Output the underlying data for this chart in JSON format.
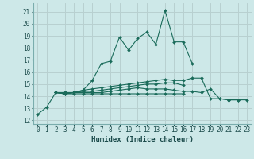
{
  "title": "",
  "xlabel": "Humidex (Indice chaleur)",
  "background_color": "#cde8e8",
  "grid_color": "#b8d0d0",
  "line_color": "#1a6b5a",
  "xlim": [
    -0.5,
    23.5
  ],
  "ylim": [
    11.7,
    21.7
  ],
  "yticks": [
    12,
    13,
    14,
    15,
    16,
    17,
    18,
    19,
    20,
    21
  ],
  "xticks": [
    0,
    1,
    2,
    3,
    4,
    5,
    6,
    7,
    8,
    9,
    10,
    11,
    12,
    13,
    14,
    15,
    16,
    17,
    18,
    19,
    20,
    21,
    22,
    23
  ],
  "series": [
    [
      12.5,
      13.1,
      14.3,
      14.3,
      14.3,
      14.5,
      15.3,
      16.7,
      16.9,
      18.9,
      17.8,
      18.8,
      19.3,
      18.3,
      21.1,
      18.5,
      18.5,
      16.7,
      null,
      null,
      null,
      null,
      null,
      null
    ],
    [
      null,
      null,
      14.3,
      14.3,
      14.3,
      14.5,
      14.6,
      14.7,
      14.8,
      14.9,
      15.0,
      15.1,
      15.2,
      15.3,
      15.4,
      15.3,
      15.3,
      15.5,
      15.5,
      13.8,
      13.8,
      13.7,
      13.7,
      null
    ],
    [
      null,
      null,
      14.3,
      14.2,
      14.3,
      14.4,
      14.4,
      14.5,
      14.6,
      14.7,
      14.8,
      14.9,
      15.0,
      15.0,
      15.1,
      15.1,
      14.9,
      null,
      null,
      null,
      null,
      null,
      null,
      null
    ],
    [
      null,
      null,
      14.3,
      14.2,
      14.3,
      14.3,
      14.3,
      14.3,
      14.4,
      14.5,
      14.6,
      14.7,
      14.6,
      14.6,
      14.6,
      14.5,
      14.4,
      14.4,
      14.3,
      14.6,
      13.8,
      13.7,
      13.7,
      13.7
    ],
    [
      null,
      null,
      14.3,
      14.2,
      14.2,
      14.2,
      14.2,
      14.2,
      14.2,
      14.2,
      14.2,
      14.2,
      14.2,
      14.2,
      14.2,
      14.2,
      14.2,
      null,
      null,
      null,
      null,
      null,
      null,
      null
    ]
  ]
}
